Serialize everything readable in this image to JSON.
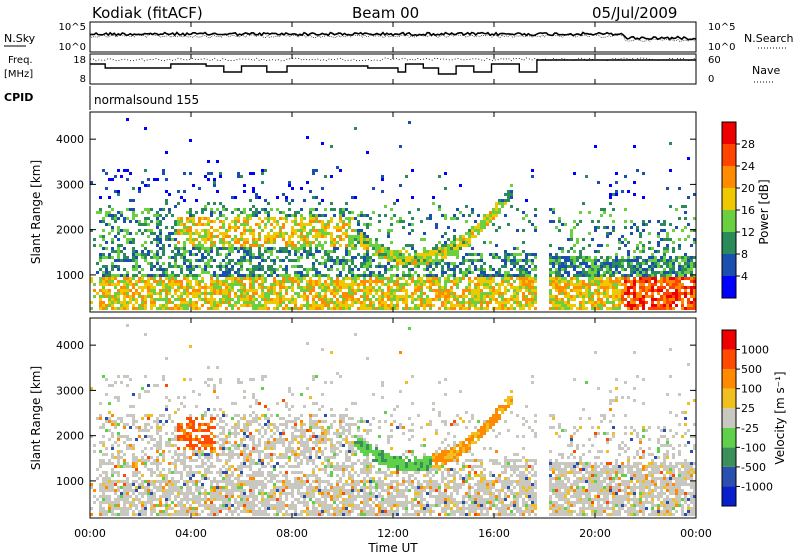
{
  "header": {
    "station": "Kodiak (fitACF)",
    "beam": "Beam 00",
    "date": "05/Jul/2009"
  },
  "noise_panel": {
    "left_label": "N.Sky",
    "right_label": "N.Search",
    "left_ticks": [
      "10^5",
      "10^0"
    ],
    "right_ticks": [
      "10^5",
      "10^0"
    ]
  },
  "freq_panel": {
    "left_label_line1": "Freq.",
    "left_label_line2": "[MHz]",
    "right_label": "Nave",
    "left_ticks": [
      "18",
      "8"
    ],
    "right_ticks": [
      "60",
      "0"
    ]
  },
  "cpid": {
    "label": "CPID",
    "value": "normalsound 155"
  },
  "x_axis": {
    "label": "Time UT",
    "ticks": [
      "00:00",
      "04:00",
      "08:00",
      "12:00",
      "16:00",
      "20:00",
      "00:00"
    ]
  },
  "y_axis": {
    "label": "Slant Range [km]",
    "ticks": [
      "1000",
      "2000",
      "3000",
      "4000"
    ]
  },
  "power_colorbar": {
    "title": "Power [dB]",
    "ticks": [
      "4",
      "8",
      "12",
      "16",
      "20",
      "24",
      "28"
    ],
    "colors": [
      "#0000ff",
      "#1a4fb0",
      "#2a8a5a",
      "#6ad040",
      "#f0c800",
      "#ff8c00",
      "#ff4400",
      "#ee0000"
    ]
  },
  "velocity_colorbar": {
    "title": "Velocity [m s⁻¹]",
    "ticks": [
      "1000",
      "500",
      "100",
      "25",
      "-25",
      "-100",
      "-500",
      "-1000"
    ],
    "colors": [
      "#0a1fcc",
      "#2a4faf",
      "#3a8f5a",
      "#5ed04a",
      "#c8c8c0",
      "#f0c020",
      "#ff8a00",
      "#ff4a00",
      "#ee0000"
    ]
  },
  "chart_data": [
    {
      "type": "heatmap",
      "name": "power",
      "x_range_hours": [
        0,
        24
      ],
      "y_range_km": [
        180,
        4600
      ],
      "colorbar_ticks_db": [
        4,
        8,
        12,
        16,
        20,
        24,
        28
      ]
    },
    {
      "type": "heatmap",
      "name": "velocity",
      "x_range_hours": [
        0,
        24
      ],
      "y_range_km": [
        180,
        4600
      ],
      "colorbar_ticks_ms": [
        1000,
        500,
        100,
        25,
        -25,
        -100,
        -500,
        -1000
      ]
    },
    {
      "type": "line",
      "name": "frequency",
      "x_range_hours": [
        0,
        24
      ],
      "ylim": [
        8,
        18
      ]
    }
  ]
}
